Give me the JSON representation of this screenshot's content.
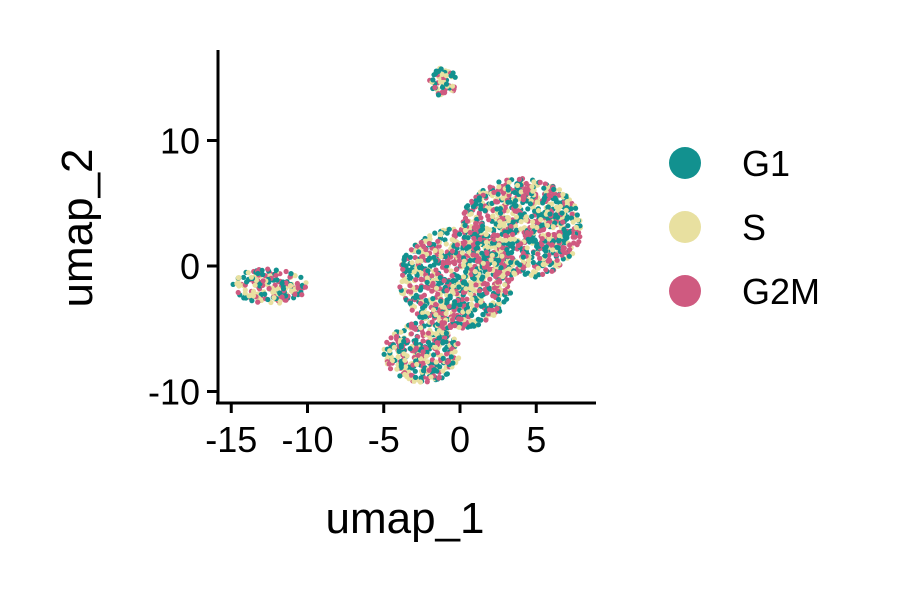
{
  "chart_data": {
    "type": "scatter",
    "title": "",
    "xlabel": "umap_1",
    "ylabel": "umap_2",
    "xlim": [
      -16,
      9
    ],
    "ylim": [
      -10.5,
      17.5
    ],
    "x_ticks": [
      {
        "value": -15,
        "label": "-15"
      },
      {
        "value": -10,
        "label": "-10"
      },
      {
        "value": -5,
        "label": "-5"
      },
      {
        "value": 0,
        "label": "0"
      },
      {
        "value": 5,
        "label": "5"
      }
    ],
    "y_ticks": [
      {
        "value": -10,
        "label": "-10"
      },
      {
        "value": 0,
        "label": "0"
      },
      {
        "value": 10,
        "label": "10"
      }
    ],
    "grid": false,
    "legend_position": "right",
    "series": [
      {
        "name": "G1",
        "color": "#12918F"
      },
      {
        "name": "S",
        "color": "#E8E0A0"
      },
      {
        "name": "G2M",
        "color": "#CF5A80"
      }
    ],
    "clusters": [
      {
        "x": [
          -15.0,
          -10.0
        ],
        "y": [
          -3.0,
          -0.2
        ]
      },
      {
        "x": [
          -2.0,
          -0.2
        ],
        "y": [
          13.5,
          15.8
        ]
      },
      {
        "x": [
          -5.0,
          0.0
        ],
        "y": [
          -9.3,
          -4.5
        ]
      },
      {
        "x": [
          -4.0,
          3.5
        ],
        "y": [
          -5.0,
          3.0
        ]
      },
      {
        "x": [
          0.0,
          8.0
        ],
        "y": [
          -1.0,
          7.0
        ]
      }
    ]
  }
}
